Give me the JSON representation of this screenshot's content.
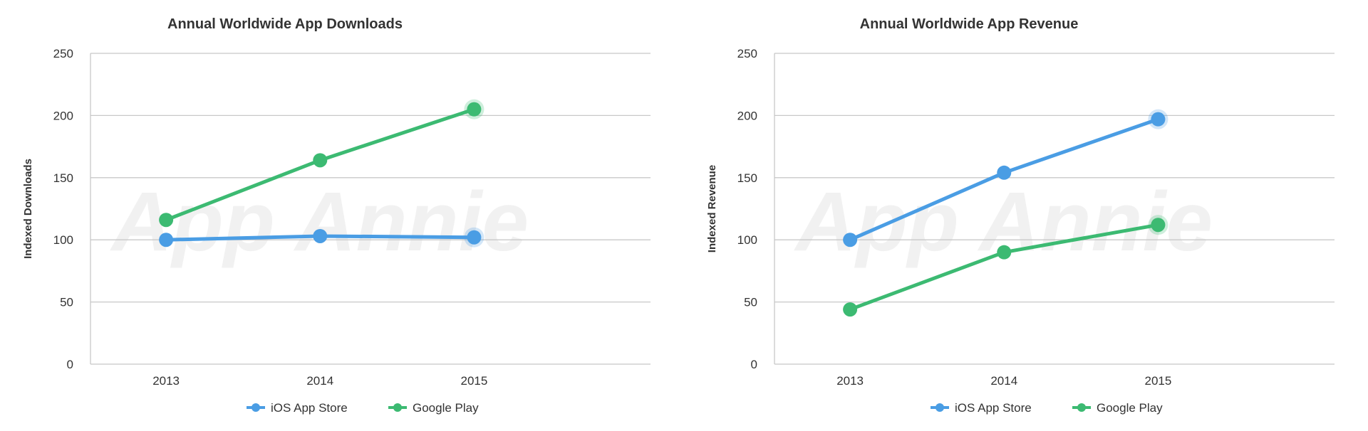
{
  "watermark": "App Annie",
  "colors": {
    "ios": "#4a9de4",
    "google": "#3cba72",
    "halo": "#c6dff7"
  },
  "chart_data": [
    {
      "type": "line",
      "title": "Annual Worldwide App Downloads",
      "xlabel": "",
      "ylabel": "Indexed Downloads",
      "categories": [
        "2013",
        "2014",
        "2015"
      ],
      "ylim": [
        0,
        250
      ],
      "yticks": [
        "0",
        "50",
        "100",
        "150",
        "200",
        "250"
      ],
      "grid": true,
      "legend_position": "bottom-center",
      "series": [
        {
          "name": "iOS App Store",
          "color": "#4a9de4",
          "values": [
            100,
            103,
            102
          ]
        },
        {
          "name": "Google Play",
          "color": "#3cba72",
          "values": [
            116,
            164,
            205
          ]
        }
      ]
    },
    {
      "type": "line",
      "title": "Annual Worldwide App Revenue",
      "xlabel": "",
      "ylabel": "Indexed Revenue",
      "categories": [
        "2013",
        "2014",
        "2015"
      ],
      "ylim": [
        0,
        250
      ],
      "yticks": [
        "0",
        "50",
        "100",
        "150",
        "200",
        "250"
      ],
      "grid": true,
      "legend_position": "bottom-center",
      "series": [
        {
          "name": "iOS App Store",
          "color": "#4a9de4",
          "values": [
            100,
            154,
            197
          ]
        },
        {
          "name": "Google Play",
          "color": "#3cba72",
          "values": [
            44,
            90,
            112
          ]
        }
      ]
    }
  ]
}
